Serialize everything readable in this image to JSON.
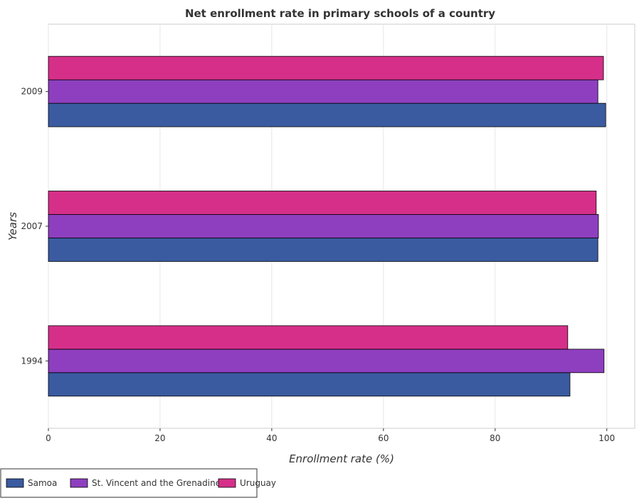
{
  "chart_data": {
    "type": "bar",
    "orientation": "horizontal",
    "title": "Net enrollment rate in primary schools of a country",
    "xlabel": "Enrollment rate (%)",
    "ylabel": "Years",
    "categories": [
      "1994",
      "2007",
      "2009"
    ],
    "xlim": [
      0,
      105
    ],
    "xticks": [
      0,
      20,
      40,
      60,
      80,
      100
    ],
    "grid": true,
    "legend_position": "bottom-left",
    "series": [
      {
        "name": "Samoa",
        "color": "#3a5ba0",
        "values": [
          93.4,
          98.4,
          99.8
        ]
      },
      {
        "name": "St. Vincent and the Grenadines",
        "color": "#8e3fbf",
        "values": [
          99.5,
          98.5,
          98.4
        ]
      },
      {
        "name": "Uruguay",
        "color": "#d62f8a",
        "values": [
          93.0,
          98.1,
          99.4
        ]
      }
    ]
  }
}
